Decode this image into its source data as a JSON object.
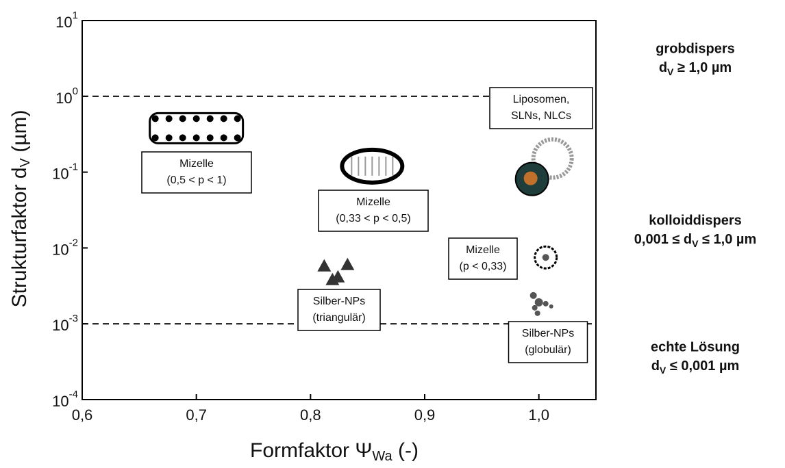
{
  "chart_data": {
    "type": "scatter",
    "x_label": {
      "text": "Formfaktor Ψ",
      "sub": "Wa",
      "after": " (-)"
    },
    "y_label": {
      "text": "Strukturfaktor d",
      "sub": "V",
      "after": " (µm)"
    },
    "xlim": [
      0.6,
      1.05
    ],
    "xticks": [
      {
        "value": 0.6,
        "label": "0,6"
      },
      {
        "value": 0.7,
        "label": "0,7"
      },
      {
        "value": 0.8,
        "label": "0,8"
      },
      {
        "value": 0.9,
        "label": "0,9"
      },
      {
        "value": 1.0,
        "label": "1,0"
      }
    ],
    "ylim": [
      0.0001,
      10
    ],
    "log_y": true,
    "yticks": [
      {
        "value": 10,
        "label": "10",
        "exponent": "1"
      },
      {
        "value": 1,
        "label": "10",
        "exponent": "0"
      },
      {
        "value": 0.1,
        "label": "10",
        "exponent": "-1"
      },
      {
        "value": 0.01,
        "label": "10",
        "exponent": "-2"
      },
      {
        "value": 0.001,
        "label": "10",
        "exponent": "-3"
      },
      {
        "value": 0.0001,
        "label": "10",
        "exponent": "-4"
      }
    ],
    "hlines": [
      1,
      0.001
    ],
    "regions": [
      {
        "title": "grobdispers",
        "d": "d",
        "sub": "V",
        "rest": " ≥ 1,0 µm"
      },
      {
        "title": "kolloiddispers",
        "d": "0,001 ≤ d",
        "sub": "V",
        "rest": " ≤ 1,0 µm"
      },
      {
        "title": "echte Lösung",
        "d": "d",
        "sub": "V",
        "rest": " ≤ 0,001 µm"
      }
    ],
    "points": [
      {
        "label": [
          "Mizelle",
          "(0,5 < p < 1)"
        ],
        "x": 0.7,
        "y": 0.38
      },
      {
        "label": [
          "Mizelle",
          "(0,33 < p < 0,5)"
        ],
        "x": 0.854,
        "y": 0.12
      },
      {
        "label": [
          "Liposomen,",
          "SLNs, NLCs"
        ],
        "x": 1.0,
        "y": 0.09
      },
      {
        "label": [
          "Mizelle",
          "(p < 0,33)"
        ],
        "x": 1.006,
        "y": 0.0075
      },
      {
        "label": [
          "Silber-NPs",
          "(triangulär)"
        ],
        "x": 0.824,
        "y": 0.0049
      },
      {
        "label": [
          "Silber-NPs",
          "(globulär)"
        ],
        "x": 1.0,
        "y": 0.002
      }
    ]
  }
}
